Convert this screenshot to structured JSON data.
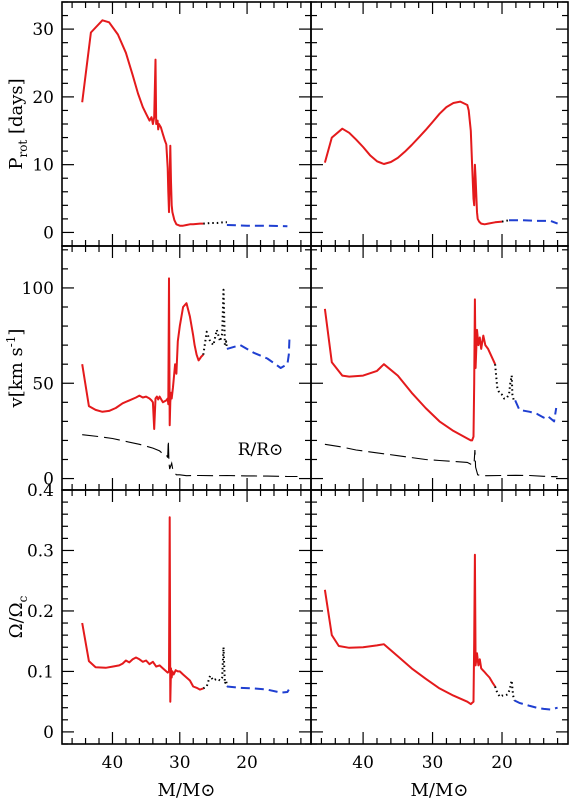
{
  "chart_data": {
    "type": "line",
    "layout": "3 rows x 2 columns, shared x axis, x axis decreasing to the right",
    "xlabel": "M/M⊙",
    "x_reversed": true,
    "xlim": [
      47.5,
      10.5
    ],
    "x_ticks": [
      40,
      30,
      20
    ],
    "styles": {
      "solid": {
        "color": "#e41a1c",
        "dash": ""
      },
      "dotted": {
        "color": "#000000",
        "dash": "1.5,3"
      },
      "dashed": {
        "color": "#1f3fd1",
        "dash": "9,5"
      },
      "radius": {
        "color": "#000000",
        "dash": "16,6"
      }
    },
    "panels": [
      {
        "id": "prot-left",
        "row": 0,
        "col": 0,
        "ylabel": "P",
        "ylabel_sub": "rot",
        "ylabel_unit": " [days]",
        "ylim": [
          -2,
          34
        ],
        "y_ticks": [
          0,
          10,
          20,
          30
        ],
        "series": [
          {
            "style": "solid",
            "x": [
              44.5,
              43.2,
              41.5,
              40.5,
              39.2,
              38,
              37,
              36.2,
              35.5,
              35,
              34.5,
              34.2,
              34,
              33.8,
              33.6,
              33.5,
              33.3,
              33.2,
              33.1,
              32.8,
              32.5,
              32.2,
              32,
              31.8,
              31.7,
              31.6,
              31.5,
              31.4,
              31.3,
              31.2,
              31.1,
              30.8,
              30.5,
              30,
              29.5,
              29,
              28.5,
              28,
              27,
              26.5
            ],
            "y": [
              19.2,
              29.5,
              31.3,
              31,
              29.2,
              26.5,
              23.2,
              20.5,
              18.5,
              17.5,
              16.5,
              17,
              16,
              17,
              25.5,
              16,
              16.5,
              15.2,
              16,
              15.5,
              14.5,
              13.5,
              13,
              9.5,
              6,
              3,
              8,
              12.8,
              7.5,
              4,
              3,
              1.8,
              1.2,
              1,
              1,
              1.1,
              1.2,
              1.2,
              1.3,
              1.3
            ]
          },
          {
            "style": "dotted",
            "x": [
              26.5,
              25.5,
              24.5,
              23.5,
              23
            ],
            "y": [
              1.3,
              1.4,
              1.4,
              1.5,
              1.5
            ]
          },
          {
            "style": "dashed",
            "x": [
              23,
              20,
              17,
              14
            ],
            "y": [
              1.1,
              1.0,
              1.0,
              0.9
            ]
          }
        ]
      },
      {
        "id": "prot-right",
        "row": 0,
        "col": 1,
        "ylim": [
          -2,
          34
        ],
        "y_ticks": [
          0,
          10,
          20,
          30
        ],
        "series": [
          {
            "style": "solid",
            "x": [
              45.5,
              44.5,
              43,
              42,
              41,
              40,
              39,
              38,
              37,
              36,
              35,
              34,
              33,
              32,
              31,
              30,
              29,
              28,
              27,
              26,
              25,
              24.8,
              24.5,
              24.3,
              24.1,
              24,
              23.9,
              23.8,
              23.6,
              23.5,
              23.3,
              23,
              22.5,
              22,
              21,
              20
            ],
            "y": [
              10.3,
              14,
              15.3,
              14.7,
              13.7,
              12.6,
              11.4,
              10.5,
              10.1,
              10.4,
              11,
              11.9,
              12.9,
              14,
              15.1,
              16.3,
              17.5,
              18.5,
              19.1,
              19.3,
              18.8,
              18,
              15,
              10,
              5,
              4,
              10,
              8,
              3,
              2,
              1.6,
              1.3,
              1.2,
              1.3,
              1.5,
              1.6
            ]
          },
          {
            "style": "dotted",
            "x": [
              20,
              19.5,
              19
            ],
            "y": [
              1.6,
              1.7,
              1.8
            ]
          },
          {
            "style": "dashed",
            "x": [
              19,
              17,
              15,
              13,
              12
            ],
            "y": [
              1.8,
              1.8,
              1.7,
              1.7,
              1.3
            ]
          }
        ]
      },
      {
        "id": "vel-left",
        "row": 1,
        "col": 0,
        "ylabel": "v[km s",
        "ylabel_sup": "-1",
        "ylabel_tail": "]",
        "ylim": [
          -6,
          122
        ],
        "y_ticks": [
          0,
          50,
          100
        ],
        "annotation": {
          "text": "R/R⊙",
          "x": 18,
          "y": 5
        },
        "series": [
          {
            "style": "solid",
            "x": [
              44.5,
              43.5,
              42.5,
              41.5,
              40.5,
              39.5,
              38.5,
              37.5,
              36.5,
              36,
              35.5,
              35,
              34.5,
              34.2,
              34,
              33.8,
              33.6,
              33.4,
              33.2,
              33,
              32.5,
              32,
              31.8,
              31.7,
              31.6,
              31.5,
              31.4,
              31.3,
              31.2,
              31,
              30.7,
              30.5,
              30.3,
              30,
              29.5,
              29,
              28.5,
              28,
              27.8,
              27.5,
              27.2,
              27,
              26.8,
              26.5
            ],
            "y": [
              60,
              38,
              36,
              35,
              35.5,
              37,
              39.5,
              41,
              42.5,
              43.5,
              42.5,
              43,
              42,
              41,
              40,
              26,
              42,
              43,
              41.5,
              43,
              40,
              41,
              42,
              39,
              105,
              28,
              40,
              45,
              42,
              48,
              60,
              55,
              72,
              80,
              90,
              92,
              85,
              75,
              70,
              65,
              62,
              63,
              64,
              65
            ]
          },
          {
            "style": "dotted",
            "x": [
              26.5,
              26,
              25.5,
              25,
              24.5,
              24,
              23.7,
              23.5,
              23.3,
              23.1,
              23
            ],
            "y": [
              65,
              77,
              72,
              70,
              78,
              72,
              76,
              99,
              70,
              72,
              68
            ]
          },
          {
            "style": "dashed",
            "x": [
              23,
              21,
              19,
              17,
              15,
              14,
              13.8,
              13.7
            ],
            "y": [
              68,
              70,
              66,
              63,
              58,
              60,
              65,
              74
            ]
          },
          {
            "style": "radius",
            "x": [
              44.5,
              42,
              40,
              38,
              36,
              34,
              33,
              32.5,
              32,
              31.8,
              31.7,
              31.6,
              31.5,
              31.4,
              31.2,
              31,
              30.5,
              30,
              29,
              28,
              27,
              25,
              23,
              20,
              17,
              14,
              12.5
            ],
            "y": [
              23,
              22,
              21,
              19.5,
              18,
              16,
              14.5,
              13,
              12.5,
              11,
              20,
              8,
              5,
              6,
              8,
              4,
              2,
              2,
              1.5,
              1.6,
              1.6,
              1.5,
              1.6,
              1.4,
              1.3,
              1.1,
              1.1
            ]
          }
        ]
      },
      {
        "id": "vel-right",
        "row": 1,
        "col": 1,
        "ylim": [
          -6,
          122
        ],
        "y_ticks": [
          0,
          50,
          100
        ],
        "series": [
          {
            "style": "solid",
            "x": [
              45.5,
              44.5,
              43,
              42,
              40,
              38,
              37,
              35,
              33,
              31,
              29,
              27,
              25,
              24.5,
              24.3,
              24.1,
              24,
              23.9,
              23.8,
              23.6,
              23.4,
              23.2,
              23,
              22.7,
              22.4,
              22,
              21.5,
              21
            ],
            "y": [
              89,
              61,
              54,
              53.5,
              54,
              56.5,
              60,
              54,
              45,
              37,
              30,
              25,
              21,
              20,
              20,
              22,
              50,
              94,
              58,
              78,
              70,
              74,
              68,
              75,
              70,
              68,
              64,
              60
            ]
          },
          {
            "style": "dotted",
            "x": [
              21,
              20.7,
              20.4,
              20,
              19.7,
              19.4,
              19,
              18.8,
              18.6,
              18.5,
              18.3,
              18.1
            ],
            "y": [
              60,
              48,
              45,
              44,
              42,
              42,
              44,
              50,
              54,
              44,
              41,
              41
            ]
          },
          {
            "style": "dashed",
            "x": [
              18.1,
              17.5,
              16,
              15,
              14,
              13.5,
              12.5,
              12.2
            ],
            "y": [
              41,
              36,
              35,
              34,
              32,
              33,
              30,
              37
            ]
          },
          {
            "style": "radius",
            "x": [
              45.5,
              43,
              41,
              39,
              37,
              35,
              33,
              31,
              29,
              27,
              25,
              24.2,
              24,
              23.9,
              23.8,
              23.5,
              23,
              22,
              20,
              18,
              16,
              14,
              12
            ],
            "y": [
              18,
              16.5,
              15,
              14,
              13,
              12,
              11,
              10,
              9.5,
              9,
              8.5,
              7,
              9,
              15,
              6,
              2,
              1.5,
              1.5,
              1.6,
              1.7,
              1.6,
              1.2,
              1
            ]
          }
        ]
      },
      {
        "id": "omega-left",
        "row": 2,
        "col": 0,
        "ylabel": "Ω/Ω",
        "ylabel_sub": "c",
        "ylim": [
          -0.02,
          0.4
        ],
        "y_ticks": [
          0,
          0.1,
          0.2,
          0.3,
          0.4
        ],
        "series": [
          {
            "style": "solid",
            "x": [
              44.5,
              43.5,
              42.5,
              41,
              40,
              39,
              38.5,
              38,
              37.5,
              37,
              36.5,
              36,
              35.5,
              35,
              34.5,
              34,
              33.5,
              33,
              32.5,
              32,
              31.8,
              31.6,
              31.5,
              31.4,
              31.3,
              31.2,
              31.1,
              30.9,
              30.6,
              30.3,
              30,
              29.5,
              29,
              28.5,
              28,
              27.5,
              27,
              26.5
            ],
            "y": [
              0.18,
              0.117,
              0.107,
              0.106,
              0.108,
              0.11,
              0.113,
              0.118,
              0.115,
              0.12,
              0.123,
              0.12,
              0.116,
              0.118,
              0.112,
              0.116,
              0.108,
              0.11,
              0.105,
              0.1,
              0.098,
              0.1,
              0.355,
              0.05,
              0.105,
              0.09,
              0.1,
              0.095,
              0.102,
              0.1,
              0.1,
              0.095,
              0.09,
              0.085,
              0.075,
              0.073,
              0.07,
              0.072
            ]
          },
          {
            "style": "dotted",
            "x": [
              26.5,
              26,
              25.5,
              25,
              24.5,
              24,
              23.7,
              23.5,
              23.3,
              23.1,
              23
            ],
            "y": [
              0.072,
              0.075,
              0.093,
              0.085,
              0.088,
              0.085,
              0.09,
              0.14,
              0.08,
              0.085,
              0.075
            ]
          },
          {
            "style": "dashed",
            "x": [
              23,
              21,
              19,
              17,
              15,
              14,
              13.8
            ],
            "y": [
              0.075,
              0.073,
              0.072,
              0.07,
              0.065,
              0.066,
              0.07
            ]
          }
        ]
      },
      {
        "id": "omega-right",
        "row": 2,
        "col": 1,
        "ylim": [
          -0.02,
          0.4
        ],
        "y_ticks": [
          0,
          0.1,
          0.2,
          0.3,
          0.4
        ],
        "series": [
          {
            "style": "solid",
            "x": [
              45.5,
              44.5,
              43.5,
              42,
              40,
              38,
              37,
              35,
              33,
              31,
              29,
              27,
              25,
              24.5,
              24.3,
              24.1,
              24,
              23.9,
              23.8,
              23.6,
              23.4,
              23.2,
              23,
              22.6,
              22.2,
              21.8,
              21.4,
              21
            ],
            "y": [
              0.235,
              0.16,
              0.142,
              0.139,
              0.14,
              0.143,
              0.145,
              0.125,
              0.105,
              0.088,
              0.072,
              0.06,
              0.05,
              0.046,
              0.048,
              0.05,
              0.15,
              0.293,
              0.11,
              0.13,
              0.11,
              0.12,
              0.105,
              0.1,
              0.095,
              0.09,
              0.082,
              0.075
            ]
          },
          {
            "style": "dotted",
            "x": [
              21,
              20.7,
              20.3,
              20,
              19.6,
              19.2,
              18.9,
              18.7,
              18.6,
              18.4,
              18.2
            ],
            "y": [
              0.075,
              0.065,
              0.058,
              0.06,
              0.06,
              0.062,
              0.07,
              0.08,
              0.085,
              0.06,
              0.052
            ]
          },
          {
            "style": "dashed",
            "x": [
              18.2,
              17.5,
              16,
              15,
              14,
              13,
              12
            ],
            "y": [
              0.052,
              0.048,
              0.043,
              0.04,
              0.038,
              0.037,
              0.04
            ]
          }
        ]
      }
    ]
  }
}
